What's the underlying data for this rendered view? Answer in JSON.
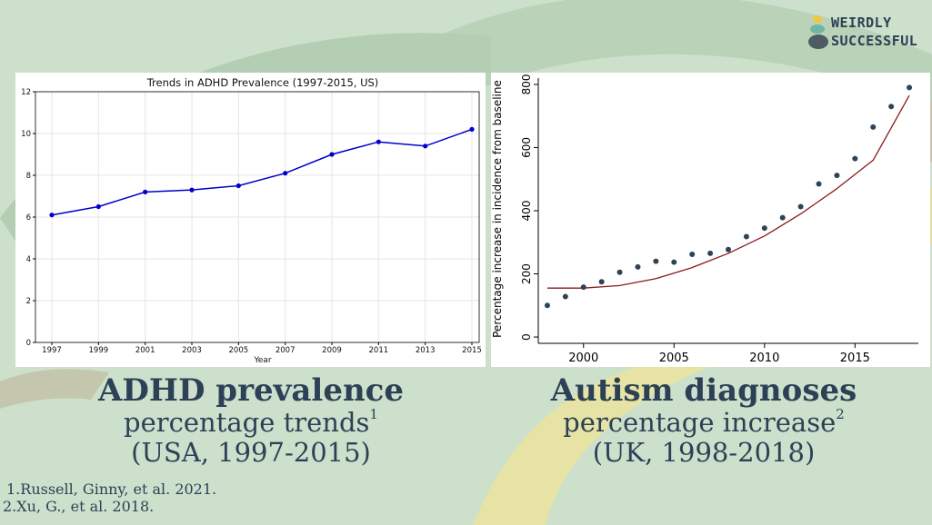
{
  "brand": {
    "line1": "WEIRDLY",
    "line2": "SUCCESSFUL",
    "logo_icon": "stacked-stones-icon",
    "colors": {
      "top": "#f3c63f",
      "middle": "#6fb7a3",
      "bottom": "#4d5b64"
    }
  },
  "captions": {
    "left": {
      "main": "ADHD prevalence",
      "sub": "percentage trends",
      "sup": "1",
      "region": "(USA, 1997-2015)"
    },
    "right": {
      "main": "Autism diagnoses",
      "sub": "percentage increase",
      "sup": "2",
      "region": "(UK, 1998-2018)"
    }
  },
  "references": [
    {
      "num": "1.",
      "text": "Russell, Ginny, et al. 2021."
    },
    {
      "num": "2.",
      "text": "Xu, G., et al. 2018."
    }
  ],
  "colors": {
    "text": "#2c4156",
    "adhd_line": "#0000cc",
    "autism_points": "#2e4356",
    "autism_fit": "#8b1a1a"
  },
  "chart_data": [
    {
      "type": "line",
      "title": "Trends in ADHD Prevalence (1997-2015, US)",
      "xlabel": "Year",
      "ylabel": "",
      "x": [
        1997,
        1999,
        2001,
        2003,
        2005,
        2007,
        2009,
        2011,
        2013,
        2015
      ],
      "series": [
        {
          "values": [
            6.1,
            6.5,
            7.2,
            7.3,
            7.5,
            8.1,
            9.0,
            9.6,
            9.4,
            10.2
          ]
        }
      ],
      "xticks": [
        "1997",
        "1999",
        "2001",
        "2003",
        "2005",
        "2007",
        "2009",
        "2011",
        "2013",
        "2015"
      ],
      "yticks": [
        "0",
        "2",
        "4",
        "6",
        "8",
        "10",
        "12"
      ],
      "ylim": [
        0,
        12
      ],
      "grid": true,
      "markers": true
    },
    {
      "type": "scatter",
      "title": "",
      "xlabel": "",
      "ylabel": "Percentage increase in incidence from baseline",
      "x": [
        1998,
        1999,
        2000,
        2001,
        2002,
        2003,
        2004,
        2005,
        2006,
        2007,
        2008,
        2009,
        2010,
        2011,
        2012,
        2013,
        2014,
        2015,
        2016,
        2017,
        2018
      ],
      "series": [
        {
          "values": [
            100,
            128,
            158,
            175,
            205,
            222,
            240,
            237,
            262,
            265,
            277,
            318,
            345,
            378,
            413,
            485,
            512,
            565,
            665,
            730,
            790
          ]
        }
      ],
      "fit": {
        "type": "quadratic",
        "x": [
          1998,
          2000,
          2002,
          2004,
          2006,
          2008,
          2010,
          2012,
          2014,
          2016,
          2018
        ],
        "values": [
          155,
          155,
          163,
          185,
          220,
          265,
          320,
          390,
          470,
          560,
          765
        ]
      },
      "xticks": [
        "2000",
        "2005",
        "2010",
        "2015"
      ],
      "yticks": [
        "0",
        "200",
        "400",
        "600",
        "800"
      ],
      "xlim": [
        1997.5,
        2018.5
      ],
      "ylim": [
        -20,
        820
      ],
      "grid": false
    }
  ]
}
